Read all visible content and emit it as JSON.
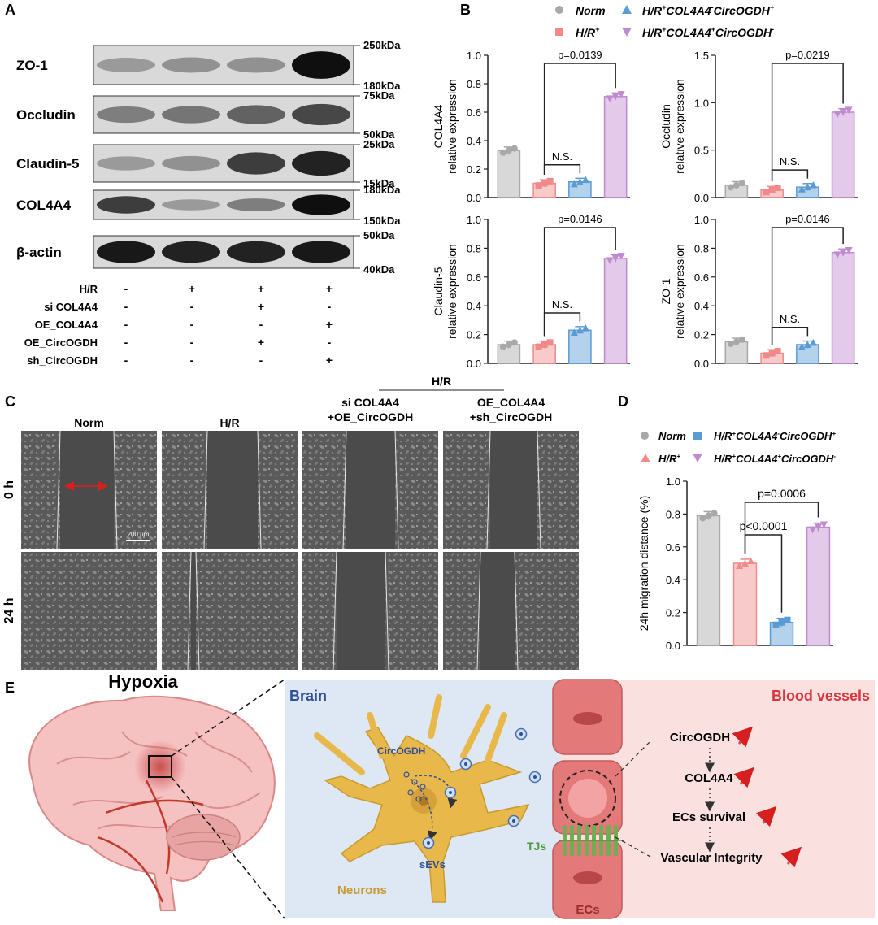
{
  "panels": {
    "A": {
      "label": "A",
      "blots": [
        {
          "name": "ZO-1",
          "upper": "250kDa",
          "lower": "180kDa",
          "intensity": [
            0.25,
            0.3,
            0.3,
            1.0
          ]
        },
        {
          "name": "Occludin",
          "upper": "75kDa",
          "lower": "50kDa",
          "intensity": [
            0.4,
            0.45,
            0.55,
            0.7
          ]
        },
        {
          "name": "Claudin-5",
          "upper": "25kDa",
          "lower": "15kDa",
          "intensity": [
            0.25,
            0.3,
            0.75,
            0.9
          ]
        },
        {
          "name": "COL4A4",
          "upper": "180kDa",
          "lower": "150kDa",
          "intensity": [
            0.75,
            0.25,
            0.4,
            1.0
          ]
        },
        {
          "name": "β-actin",
          "upper": "50kDa",
          "lower": "40kDa",
          "intensity": [
            0.95,
            0.9,
            0.9,
            0.95
          ]
        }
      ],
      "conditions": [
        {
          "name": "H/R",
          "marks": [
            "-",
            "+",
            "+",
            "+"
          ]
        },
        {
          "name": "si COL4A4",
          "marks": [
            "-",
            "-",
            "+",
            "-"
          ]
        },
        {
          "name": "OE_COL4A4",
          "marks": [
            "-",
            "-",
            "-",
            "+"
          ]
        },
        {
          "name": "OE_CircOGDH",
          "marks": [
            "-",
            "-",
            "+",
            "-"
          ]
        },
        {
          "name": "sh_CircOGDH",
          "marks": [
            "-",
            "-",
            "-",
            "+"
          ]
        }
      ]
    },
    "B": {
      "label": "B",
      "legend": [
        "Norm",
        "H/R",
        "H/R COL4A4 CircOGDH",
        "H/R COL4A4 CircOGDH"
      ]
    },
    "C": {
      "label": "C",
      "group_header": "H/R",
      "columns": [
        "Norm",
        "H/R",
        "si COL4A4\n+OE_CircOGDH",
        "OE_COL4A4\n+sh_CircOGDH"
      ],
      "rows": [
        "0 h",
        "24 h"
      ],
      "scale_bar": "200 μm"
    },
    "D": {
      "label": "D",
      "legend": [
        "Norm",
        "H/R",
        "H/R COL4A4 CircOGDH",
        "H/R COL4A4 CircOGDH"
      ]
    },
    "E": {
      "label": "E",
      "hypoxia": "Hypoxia",
      "brain": "Brain",
      "blood_vessels": "Blood vessels",
      "circ": "CircOGDH",
      "sevs": "sEVs",
      "tjs": "TJs",
      "neurons": "Neurons",
      "ecs": "ECs",
      "cascade": [
        "CircOGDH",
        "COL4A4",
        "ECs survival",
        "Vascular Integrity"
      ]
    }
  },
  "colors": {
    "norm": "#a8a8a8",
    "hr": "#f08a8a",
    "blue": "#5b9bd5",
    "purple": "#c08ad0",
    "brain_bg": "#dde8f4",
    "vessel_bg": "#fbe0e0",
    "red_title": "#d9353d",
    "blue_title": "#2f4f9a"
  },
  "chart_data": [
    {
      "type": "bar",
      "title": "",
      "ylabel": "COL4A4\nrelative expression",
      "ylim": [
        0,
        1.0
      ],
      "yticks": [
        "0.0",
        "0.2",
        "0.4",
        "0.6",
        "0.8",
        "1.0"
      ],
      "series": [
        {
          "values": [
            0.33,
            0.1,
            0.11,
            0.71
          ]
        }
      ],
      "annotations": [
        "p=0.0139",
        "N.S."
      ]
    },
    {
      "type": "bar",
      "ylabel": "Occludin\nrelative expression",
      "ylim": [
        0,
        1.5
      ],
      "yticks": [
        "0.0",
        "0.5",
        "1.0",
        "1.5"
      ],
      "series": [
        {
          "values": [
            0.13,
            0.08,
            0.11,
            0.9
          ]
        }
      ],
      "annotations": [
        "p=0.0219",
        "N.S."
      ]
    },
    {
      "type": "bar",
      "ylabel": "Claudin-5\nrelative expression",
      "ylim": [
        0,
        1.0
      ],
      "yticks": [
        "0.0",
        "0.2",
        "0.4",
        "0.6",
        "0.8",
        "1.0"
      ],
      "series": [
        {
          "values": [
            0.13,
            0.13,
            0.23,
            0.73
          ]
        }
      ],
      "annotations": [
        "p=0.0146",
        "N.S."
      ]
    },
    {
      "type": "bar",
      "ylabel": "ZO-1\nrelative expression",
      "ylim": [
        0,
        1.0
      ],
      "yticks": [
        "0.0",
        "0.2",
        "0.4",
        "0.6",
        "0.8",
        "1.0"
      ],
      "series": [
        {
          "values": [
            0.15,
            0.07,
            0.13,
            0.77
          ]
        }
      ],
      "annotations": [
        "p=0.0146",
        "N.S."
      ]
    },
    {
      "type": "bar",
      "ylabel": "24h migration distance (%)",
      "ylim": [
        0,
        1.0
      ],
      "yticks": [
        "0.0",
        "0.2",
        "0.4",
        "0.6",
        "0.8",
        "1.0"
      ],
      "series": [
        {
          "values": [
            0.79,
            0.5,
            0.14,
            0.72
          ]
        }
      ],
      "annotations": [
        "p=0.0006",
        "p<0.0001"
      ]
    }
  ]
}
